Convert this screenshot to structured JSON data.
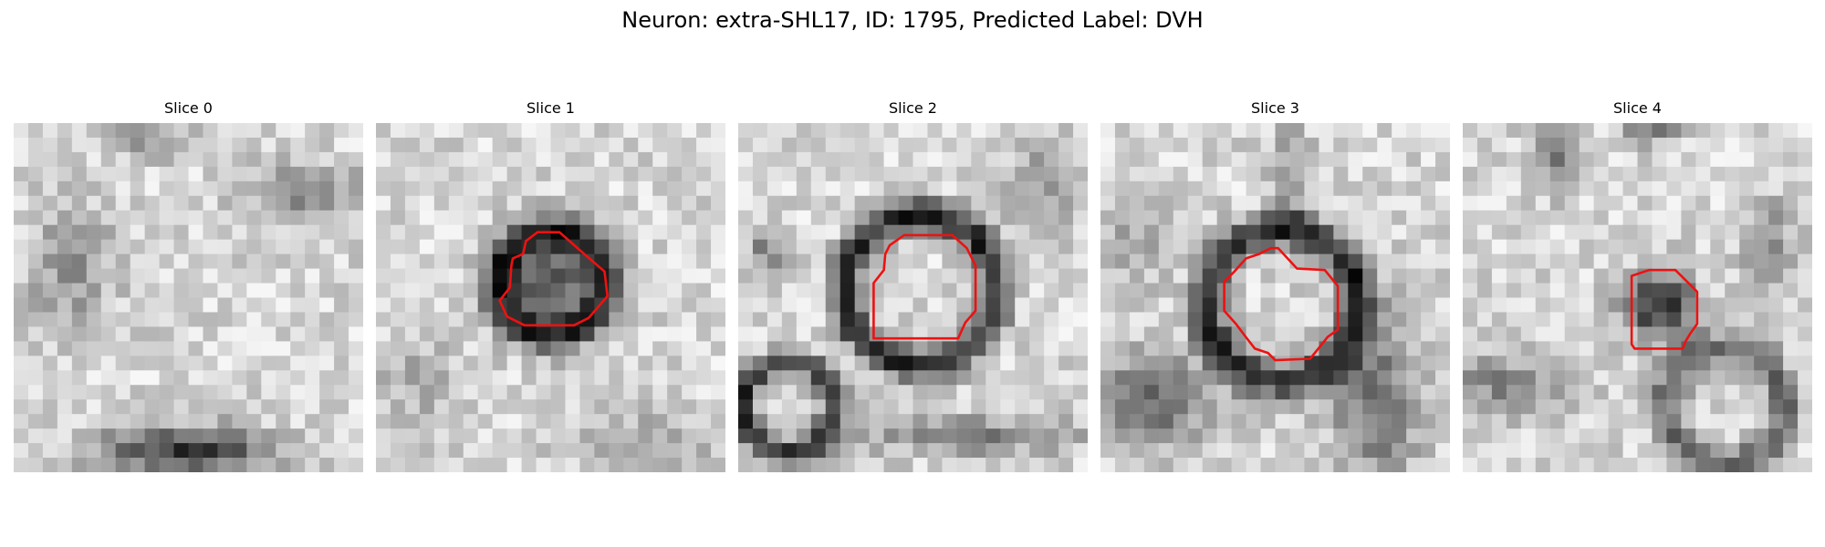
{
  "figure": {
    "title": "Neuron: extra-SHL17, ID: 1795, Predicted Label: DVH"
  },
  "panels": [
    {
      "title": "Slice 0",
      "image": "grayscale-microscopy-patch",
      "has_contour": false
    },
    {
      "title": "Slice 1",
      "image": "grayscale-microscopy-patch",
      "has_contour": true
    },
    {
      "title": "Slice 2",
      "image": "grayscale-microscopy-patch",
      "has_contour": true
    },
    {
      "title": "Slice 3",
      "image": "grayscale-microscopy-patch",
      "has_contour": true
    },
    {
      "title": "Slice 4",
      "image": "grayscale-microscopy-patch",
      "has_contour": true
    }
  ],
  "colors": {
    "contour": "#ee1111",
    "background": "#ffffff",
    "text": "#000000"
  },
  "colormap": "gray"
}
